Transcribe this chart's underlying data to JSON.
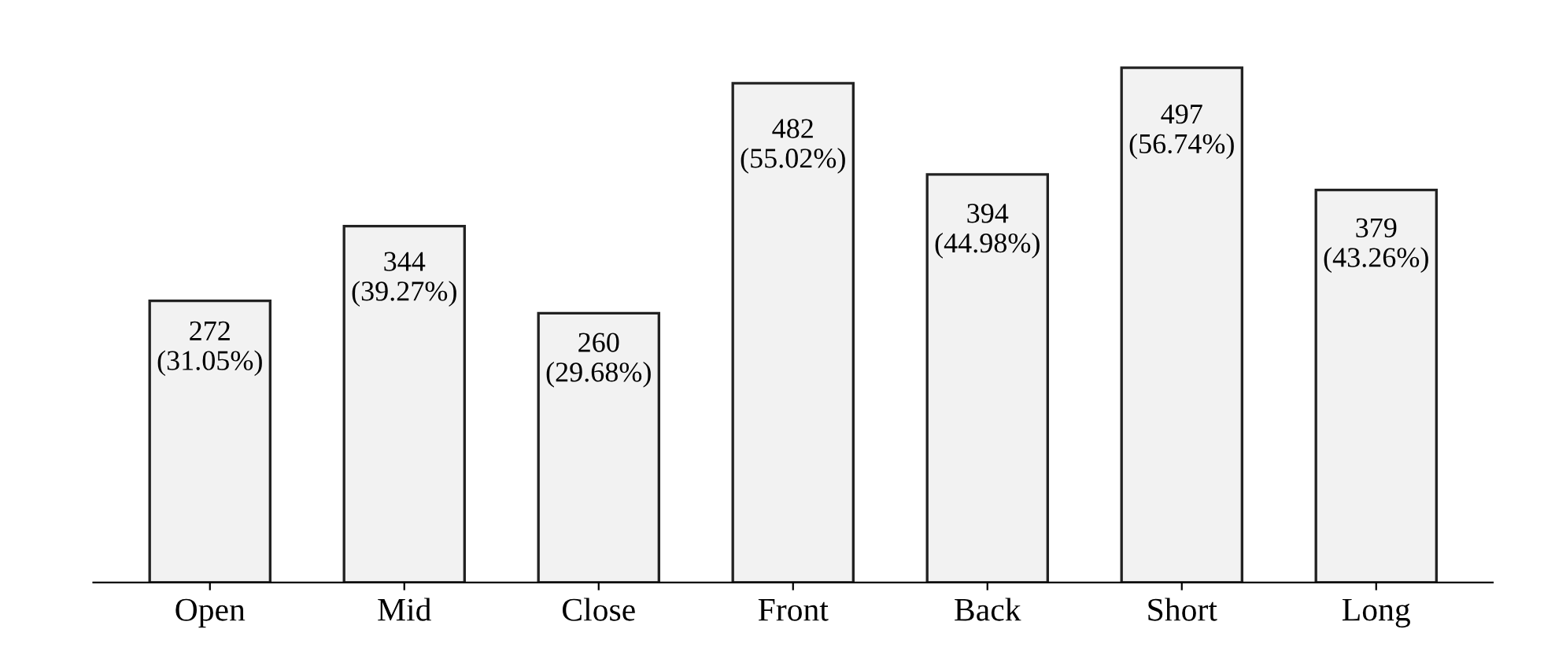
{
  "chart_data": {
    "type": "bar",
    "categories": [
      "Open",
      "Mid",
      "Close",
      "Front",
      "Back",
      "Short",
      "Long"
    ],
    "values": [
      272,
      344,
      260,
      482,
      394,
      497,
      379
    ],
    "value_labels": [
      "272\n(31.05%)",
      "344\n(39.27%)",
      "260\n(29.68%)",
      "482\n(55.02%)",
      "394\n(44.98%)",
      "497\n(56.74%)",
      "379\n(43.26%)"
    ],
    "color": "#f2f2f2",
    "tick_labels": "x",
    "grid": false,
    "legend": false
  }
}
